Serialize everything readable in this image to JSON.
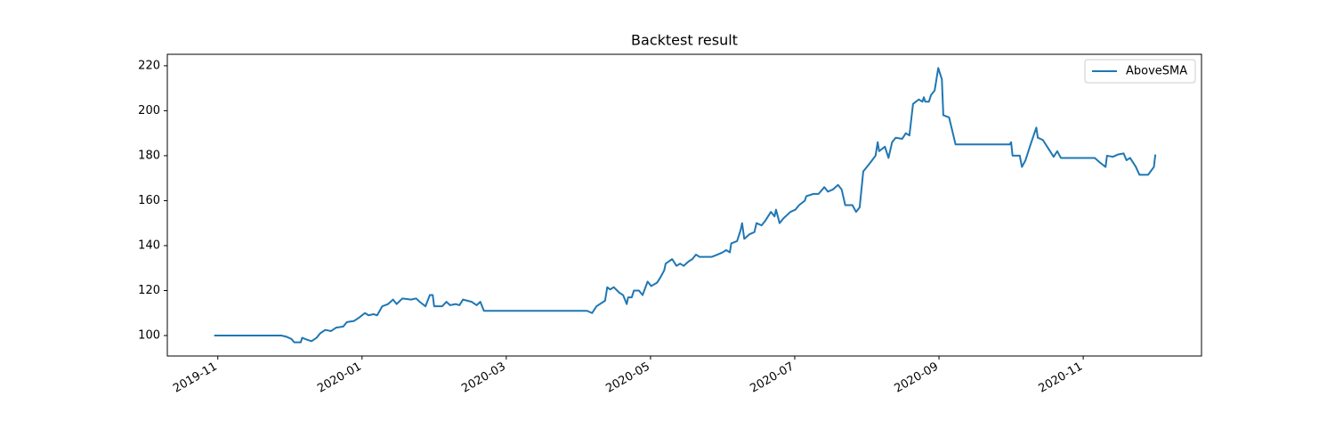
{
  "chart_data": {
    "type": "line",
    "title": "Backtest result",
    "x": [
      -0.05,
      0.88,
      0.95,
      1.02,
      1.06,
      1.15,
      1.17,
      1.25,
      1.3,
      1.37,
      1.42,
      1.49,
      1.57,
      1.64,
      1.74,
      1.79,
      1.89,
      1.96,
      2.04,
      2.09,
      2.16,
      2.21,
      2.28,
      2.36,
      2.43,
      2.48,
      2.56,
      2.68,
      2.75,
      2.8,
      2.88,
      2.94,
      2.98,
      3.0,
      3.11,
      3.17,
      3.22,
      3.3,
      3.35,
      3.4,
      3.52,
      3.59,
      3.64,
      3.69,
      5.12,
      5.19,
      5.25,
      5.37,
      5.4,
      5.44,
      5.49,
      5.57,
      5.62,
      5.67,
      5.69,
      5.74,
      5.77,
      5.84,
      5.89,
      5.96,
      6.01,
      6.09,
      6.14,
      6.19,
      6.21,
      6.3,
      6.36,
      6.41,
      6.46,
      6.53,
      6.58,
      6.63,
      6.68,
      6.78,
      6.85,
      6.93,
      7.0,
      7.05,
      7.1,
      7.12,
      7.2,
      7.25,
      7.27,
      7.3,
      7.37,
      7.44,
      7.47,
      7.54,
      7.59,
      7.67,
      7.72,
      7.74,
      7.79,
      7.84,
      7.94,
      8.01,
      8.06,
      8.14,
      8.16,
      8.26,
      8.33,
      8.41,
      8.46,
      8.53,
      8.6,
      8.65,
      8.7,
      8.8,
      8.85,
      8.9,
      8.95,
      9.05,
      9.12,
      9.15,
      9.17,
      9.25,
      9.3,
      9.35,
      9.4,
      9.49,
      9.54,
      9.59,
      9.64,
      9.72,
      9.77,
      9.79,
      9.81,
      9.86,
      9.89,
      9.94,
      9.99,
      10.04,
      10.06,
      10.14,
      10.23,
      10.98,
      11.0,
      11.02,
      11.12,
      11.15,
      11.2,
      11.27,
      11.35,
      11.37,
      11.44,
      11.52,
      11.59,
      11.64,
      11.69,
      12.16,
      12.23,
      12.31,
      12.33,
      12.41,
      12.48,
      12.56,
      12.6,
      12.65,
      12.73,
      12.78,
      12.9,
      12.98,
      13.0
    ],
    "series": [
      {
        "name": "AboveSMA",
        "color": "#1f77b4",
        "values": [
          100,
          100,
          99.5,
          98.5,
          97,
          97,
          99,
          98,
          97.5,
          99,
          101,
          102.5,
          102,
          103.5,
          104,
          106,
          106.5,
          108,
          110,
          109,
          109.5,
          109,
          113,
          114,
          116,
          114,
          116.5,
          116,
          116.5,
          115,
          113,
          118,
          118,
          113,
          113,
          115,
          113.5,
          114,
          113.5,
          116,
          115,
          113.5,
          115,
          111,
          111,
          110,
          113,
          115.5,
          121.5,
          120.5,
          121.5,
          119,
          118,
          114,
          117,
          117,
          120,
          120,
          118,
          124,
          122,
          123.5,
          126,
          129,
          132,
          134,
          131,
          132,
          131,
          133,
          134,
          136,
          135,
          135,
          135,
          136,
          137,
          138,
          137,
          141,
          142,
          147,
          150,
          143,
          145,
          146,
          150,
          149,
          151,
          155,
          153,
          156,
          150,
          152,
          155,
          156,
          158,
          160,
          162,
          163,
          163,
          166,
          164,
          165,
          167,
          165,
          158,
          158,
          155,
          157,
          173,
          177,
          180,
          186,
          182,
          184,
          179,
          186,
          188,
          187.5,
          190,
          189,
          203,
          205,
          204,
          206,
          204,
          204,
          207,
          209,
          219,
          214,
          198,
          197,
          185,
          185,
          186,
          180,
          180,
          175,
          178,
          185,
          192.5,
          188,
          187,
          183,
          179.5,
          182,
          179,
          179,
          177,
          175,
          180,
          179.5,
          180.5,
          181,
          178,
          179,
          175,
          171.5,
          171.5,
          175,
          180.5
        ]
      }
    ],
    "xlim": [
      -0.7,
      13.64
    ],
    "xticks": [
      {
        "value": 0,
        "label": "2019-11"
      },
      {
        "value": 2,
        "label": "2020-01"
      },
      {
        "value": 4,
        "label": "2020-03"
      },
      {
        "value": 6,
        "label": "2020-05"
      },
      {
        "value": 8,
        "label": "2020-07"
      },
      {
        "value": 10,
        "label": "2020-09"
      },
      {
        "value": 12,
        "label": "2020-11"
      }
    ],
    "ylim": [
      90.9,
      225.1
    ],
    "yticks": [
      100,
      120,
      140,
      160,
      180,
      200,
      220
    ],
    "legend": "upper right"
  }
}
